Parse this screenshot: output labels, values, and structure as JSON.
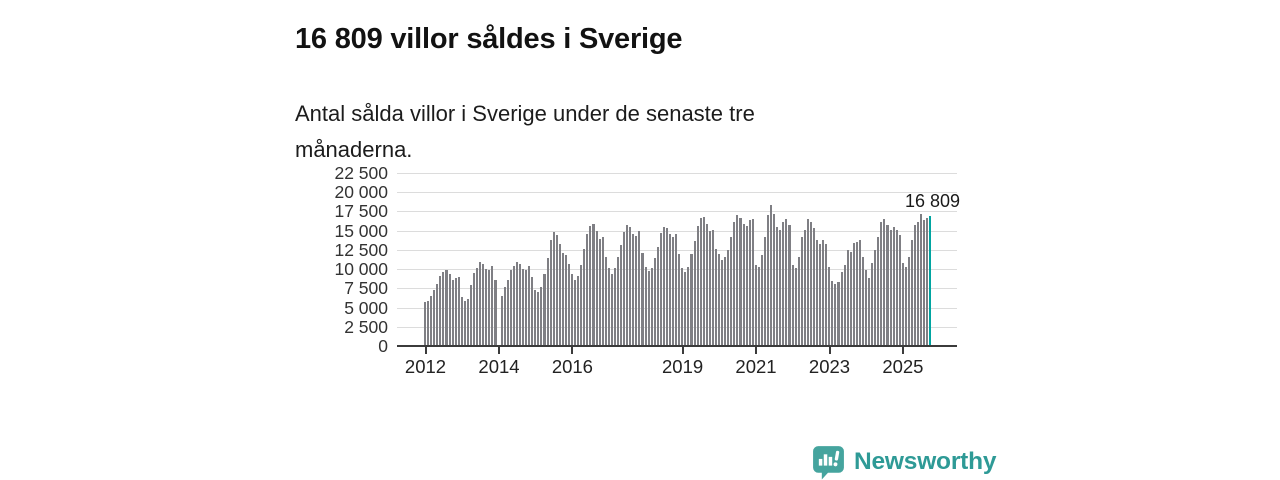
{
  "header": {
    "title": "16 809 villor såldes i Sverige",
    "subtitle": "Antal sålda villor i Sverige under de senaste tre månaderna."
  },
  "annotation": {
    "last_value_label": "16 809"
  },
  "footer": {
    "brand": "Newsworthy",
    "logo_icon": "newsworthy-speech-bubble-chart-icon"
  },
  "colors": {
    "bar": "#7f7f84",
    "highlight": "#00a5a1",
    "brand": "#2e9a96",
    "logo_bubble": "#45a49e",
    "grid": "#dcdcdc",
    "axis": "#3b3b3b",
    "text": "#1a1a1a"
  },
  "chart_data": {
    "type": "bar",
    "title": "16 809 villor såldes i Sverige",
    "subtitle": "Antal sålda villor i Sverige under de senaste tre månaderna.",
    "xlabel": "",
    "ylabel": "",
    "ylim": [
      0,
      22500
    ],
    "ytick_step": 2500,
    "grid": true,
    "legend": false,
    "highlight_index": 165,
    "highlight_value": 16809,
    "yticks": [
      {
        "value": 22500,
        "label": "22 500"
      },
      {
        "value": 20000,
        "label": "20 000"
      },
      {
        "value": 17500,
        "label": "17 500"
      },
      {
        "value": 15000,
        "label": "15 000"
      },
      {
        "value": 12500,
        "label": "12 500"
      },
      {
        "value": 10000,
        "label": "10 000"
      },
      {
        "value": 7500,
        "label": "7 500"
      },
      {
        "value": 5000,
        "label": "5 000"
      },
      {
        "value": 2500,
        "label": "2 500"
      },
      {
        "value": 0,
        "label": "0"
      }
    ],
    "xticks": [
      {
        "label": "2012",
        "month_index": 0
      },
      {
        "label": "2014",
        "month_index": 24
      },
      {
        "label": "2016",
        "month_index": 48
      },
      {
        "label": "2019",
        "month_index": 84
      },
      {
        "label": "2021",
        "month_index": 108
      },
      {
        "label": "2023",
        "month_index": 132
      },
      {
        "label": "2025",
        "month_index": 156
      }
    ],
    "x_start": "2012-01",
    "x_frequency": "monthly",
    "x": [
      "2012-01",
      "2012-02",
      "2012-03",
      "2012-04",
      "2012-05",
      "2012-06",
      "2012-07",
      "2012-08",
      "2012-09",
      "2012-10",
      "2012-11",
      "2012-12",
      "2013-01",
      "2013-02",
      "2013-03",
      "2013-04",
      "2013-05",
      "2013-06",
      "2013-07",
      "2013-08",
      "2013-09",
      "2013-10",
      "2013-11",
      "2013-12",
      "2014-01",
      "2014-02",
      "2014-03",
      "2014-04",
      "2014-05",
      "2014-06",
      "2014-07",
      "2014-08",
      "2014-09",
      "2014-10",
      "2014-11",
      "2014-12",
      "2015-01",
      "2015-02",
      "2015-03",
      "2015-04",
      "2015-05",
      "2015-06",
      "2015-07",
      "2015-08",
      "2015-09",
      "2015-10",
      "2015-11",
      "2015-12",
      "2016-01",
      "2016-02",
      "2016-03",
      "2016-04",
      "2016-05",
      "2016-06",
      "2016-07",
      "2016-08",
      "2016-09",
      "2016-10",
      "2016-11",
      "2016-12",
      "2017-01",
      "2017-02",
      "2017-03",
      "2017-04",
      "2017-05",
      "2017-06",
      "2017-07",
      "2017-08",
      "2017-09",
      "2017-10",
      "2017-11",
      "2017-12",
      "2018-01",
      "2018-02",
      "2018-03",
      "2018-04",
      "2018-05",
      "2018-06",
      "2018-07",
      "2018-08",
      "2018-09",
      "2018-10",
      "2018-11",
      "2018-12",
      "2019-01",
      "2019-02",
      "2019-03",
      "2019-04",
      "2019-05",
      "2019-06",
      "2019-07",
      "2019-08",
      "2019-09",
      "2019-10",
      "2019-11",
      "2019-12",
      "2020-01",
      "2020-02",
      "2020-03",
      "2020-04",
      "2020-05",
      "2020-06",
      "2020-07",
      "2020-08",
      "2020-09",
      "2020-10",
      "2020-11",
      "2020-12",
      "2021-01",
      "2021-02",
      "2021-03",
      "2021-04",
      "2021-05",
      "2021-06",
      "2021-07",
      "2021-08",
      "2021-09",
      "2021-10",
      "2021-11",
      "2021-12",
      "2022-01",
      "2022-02",
      "2022-03",
      "2022-04",
      "2022-05",
      "2022-06",
      "2022-07",
      "2022-08",
      "2022-09",
      "2022-10",
      "2022-11",
      "2022-12",
      "2023-01",
      "2023-02",
      "2023-03",
      "2023-04",
      "2023-05",
      "2023-06",
      "2023-07",
      "2023-08",
      "2023-09",
      "2023-10",
      "2023-11",
      "2023-12",
      "2024-01",
      "2024-02",
      "2024-03",
      "2024-04",
      "2024-05",
      "2024-06",
      "2024-07",
      "2024-08",
      "2024-09",
      "2024-10",
      "2024-11",
      "2024-12",
      "2025-01",
      "2025-02",
      "2025-03",
      "2025-04",
      "2025-05",
      "2025-06",
      "2025-07",
      "2025-08",
      "2025-09",
      "2025-10"
    ],
    "values": [
      5600,
      5700,
      6400,
      7200,
      7900,
      9000,
      9500,
      9700,
      9300,
      8500,
      8700,
      8800,
      6200,
      5700,
      6000,
      7800,
      9400,
      10000,
      10800,
      10600,
      9900,
      9800,
      10300,
      8400,
      null,
      6400,
      7600,
      8400,
      9800,
      10300,
      10750,
      10600,
      9950,
      9800,
      10300,
      8900,
      7200,
      6900,
      7500,
      9300,
      11300,
      13600,
      14650,
      14300,
      13200,
      12000,
      11700,
      10500,
      9300,
      8500,
      9000,
      10400,
      12500,
      14500,
      15500,
      15800,
      14800,
      13800,
      14000,
      11500,
      10000,
      9300,
      10000,
      11500,
      13000,
      14700,
      15600,
      15300,
      14500,
      14200,
      14800,
      12000,
      10200,
      9600,
      10000,
      11300,
      12800,
      14600,
      15400,
      15200,
      14400,
      14000,
      14500,
      11800,
      10000,
      9500,
      10200,
      11800,
      13500,
      15500,
      16500,
      16700,
      15800,
      14800,
      15000,
      12500,
      11900,
      11000,
      11500,
      12400,
      14000,
      16000,
      16900,
      16500,
      15800,
      15500,
      16200,
      16400,
      10400,
      10200,
      11700,
      14100,
      16900,
      18200,
      17100,
      15400,
      15000,
      16000,
      16450,
      15600,
      10400,
      10000,
      11500,
      14100,
      15000,
      16450,
      16050,
      15200,
      13650,
      13200,
      13650,
      13150,
      10200,
      8300,
      7900,
      8200,
      9550,
      10400,
      12350,
      12150,
      13250,
      13450,
      13700,
      11500,
      9800,
      8700,
      10650,
      12350,
      14100,
      16050,
      16450,
      15600,
      14950,
      15400,
      14950,
      14300,
      10650,
      10200,
      11500,
      13650,
      15600,
      16000,
      17100,
      16300,
      16500,
      16809
    ]
  }
}
